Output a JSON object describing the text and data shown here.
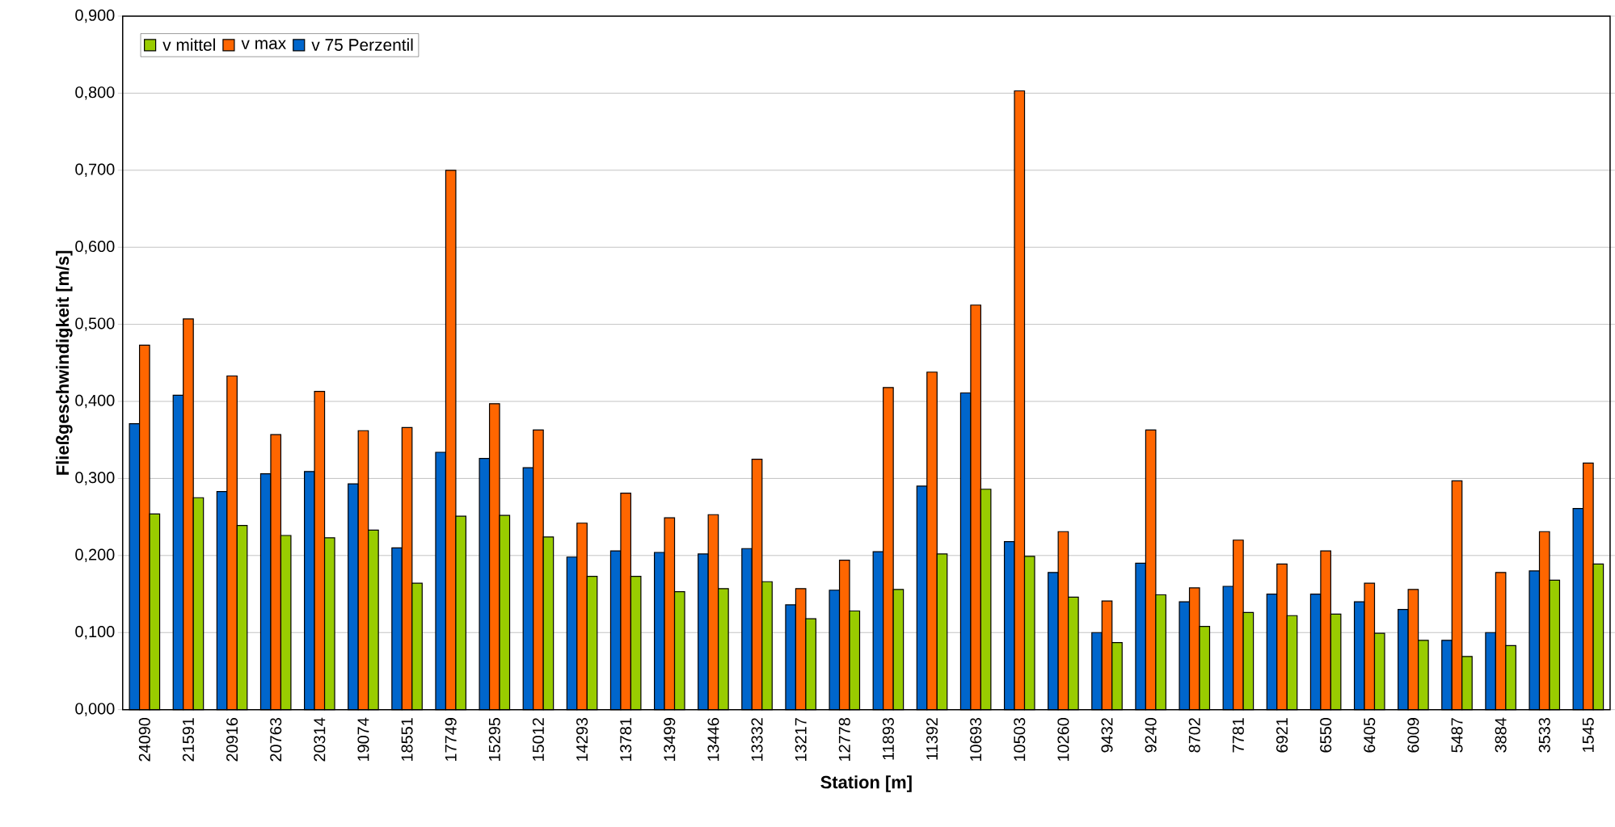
{
  "chart_data": {
    "type": "bar",
    "xlabel": "Station [m]",
    "ylabel": "Fließgeschwindigkeit [m/s]",
    "categories": [
      "24090",
      "21591",
      "20916",
      "20763",
      "20314",
      "19074",
      "18551",
      "17749",
      "15295",
      "15012",
      "14293",
      "13781",
      "13499",
      "13446",
      "13332",
      "13217",
      "12778",
      "11893",
      "11392",
      "10693",
      "10503",
      "10260",
      "9432",
      "9240",
      "8702",
      "7781",
      "6921",
      "6550",
      "6405",
      "6009",
      "5487",
      "3884",
      "3533",
      "1545"
    ],
    "series": [
      {
        "name": "v 75 Perzentil",
        "color": "#0066cc",
        "values": [
          0.371,
          0.408,
          0.283,
          0.306,
          0.309,
          0.293,
          0.21,
          0.334,
          0.326,
          0.314,
          0.198,
          0.206,
          0.204,
          0.202,
          0.209,
          0.136,
          0.155,
          0.205,
          0.29,
          0.411,
          0.218,
          0.178,
          0.1,
          0.19,
          0.14,
          0.16,
          0.15,
          0.15,
          0.14,
          0.13,
          0.09,
          0.1,
          0.18,
          0.261
        ]
      },
      {
        "name": "v max",
        "color": "#ff6600",
        "values": [
          0.473,
          0.507,
          0.433,
          0.357,
          0.413,
          0.362,
          0.366,
          0.7,
          0.397,
          0.363,
          0.242,
          0.281,
          0.249,
          0.253,
          0.325,
          0.157,
          0.194,
          0.418,
          0.438,
          0.525,
          0.803,
          0.231,
          0.141,
          0.363,
          0.158,
          0.22,
          0.189,
          0.206,
          0.164,
          0.156,
          0.297,
          0.178,
          0.231,
          0.32
        ]
      },
      {
        "name": "v mittel",
        "color": "#99cc00",
        "values": [
          0.254,
          0.275,
          0.239,
          0.226,
          0.223,
          0.233,
          0.164,
          0.251,
          0.252,
          0.224,
          0.173,
          0.173,
          0.153,
          0.157,
          0.166,
          0.118,
          0.128,
          0.156,
          0.202,
          0.286,
          0.199,
          0.146,
          0.087,
          0.149,
          0.108,
          0.126,
          0.122,
          0.124,
          0.099,
          0.09,
          0.069,
          0.083,
          0.168,
          0.189
        ]
      }
    ],
    "ylim": [
      0,
      0.9
    ],
    "yticks": [
      {
        "value": 0,
        "label": "0,000"
      },
      {
        "value": 0.1,
        "label": "0,100"
      },
      {
        "value": 0.2,
        "label": "0,200"
      },
      {
        "value": 0.3,
        "label": "0,300"
      },
      {
        "value": 0.4,
        "label": "0,400"
      },
      {
        "value": 0.5,
        "label": "0,500"
      },
      {
        "value": 0.6,
        "label": "0,600"
      },
      {
        "value": 0.7,
        "label": "0,700"
      },
      {
        "value": 0.8,
        "label": "0,800"
      },
      {
        "value": 0.9,
        "label": "0,900"
      }
    ],
    "grid": "y",
    "legend": "top left"
  }
}
